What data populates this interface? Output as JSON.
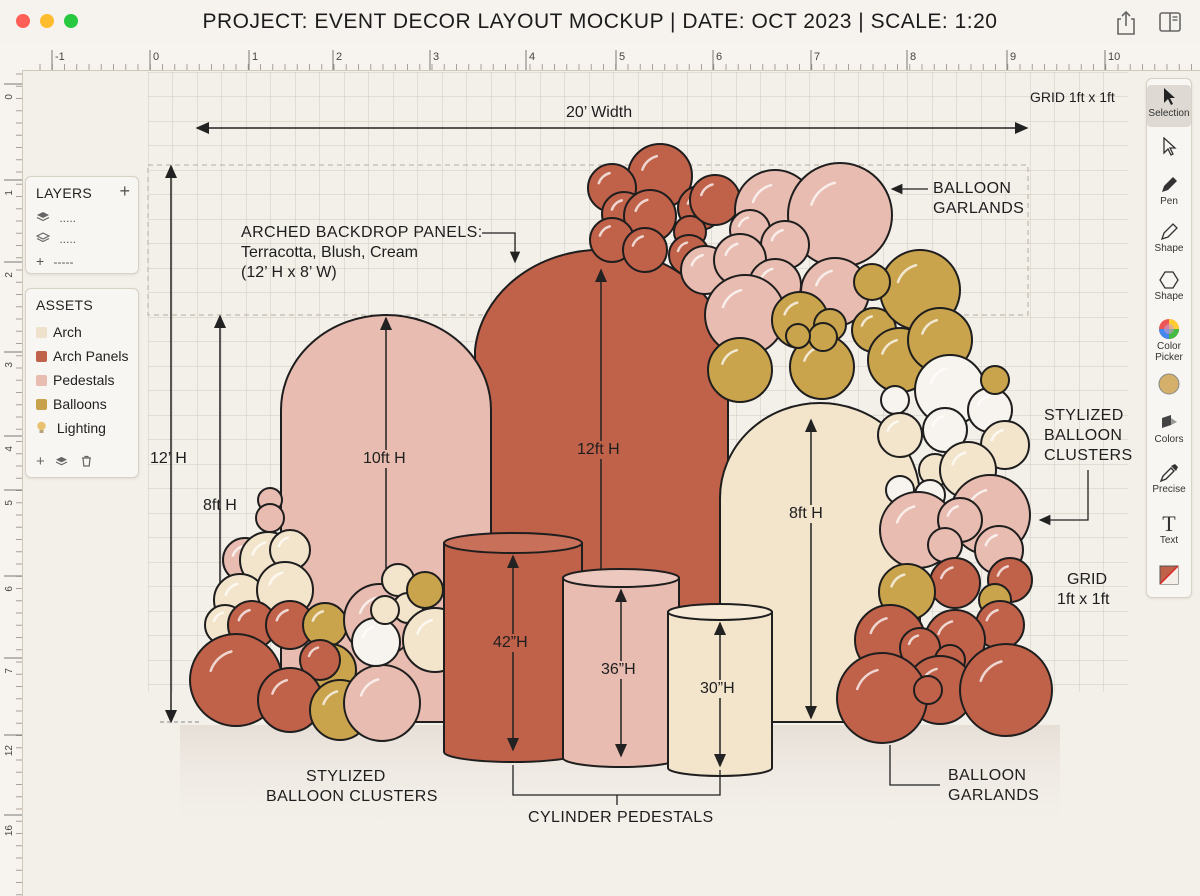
{
  "window": {
    "title": "PROJECT: EVENT DECOR LAYOUT MOCKUP | DATE: OCT 2023 | SCALE: 1:20",
    "traffic_colors": [
      "#ff5f57",
      "#febc2e",
      "#28c840"
    ],
    "share_icon": "share-icon",
    "sidebar_toggle_icon": "sidebar-toggle-icon"
  },
  "rulers": {
    "top_ticks": [
      "-1",
      "0",
      "1",
      "2",
      "3",
      "4",
      "5",
      "6",
      "7",
      "8",
      "9",
      "10"
    ],
    "left_ticks": [
      "0",
      "1",
      "2",
      "3",
      "4",
      "5",
      "6",
      "7",
      "12",
      "16"
    ]
  },
  "layers_panel": {
    "title": "LAYERS",
    "add": "+",
    "rows": [
      {
        "icon": "layers-icon",
        "label": "....."
      },
      {
        "icon": "layers-outline-icon",
        "label": "....."
      },
      {
        "icon": "plus-icon",
        "label": "-----"
      }
    ]
  },
  "assets_panel": {
    "title": "ASSETS",
    "items": [
      {
        "label": "Arch",
        "color": "#efe2cc"
      },
      {
        "label": "Arch Panels",
        "color": "#c0614a"
      },
      {
        "label": "Pedestals",
        "color": "#e8bcb0"
      },
      {
        "label": "Balloons",
        "color": "#c8a24a"
      },
      {
        "label": "Lighting",
        "color": "#e8c270",
        "icon": "bulb-icon"
      }
    ],
    "footer_icons": [
      "add-icon",
      "layers-icon",
      "trash-icon"
    ]
  },
  "toolbar": {
    "tools": [
      {
        "label": "Selection",
        "icon": "cursor-icon"
      },
      {
        "label": "",
        "icon": "direct-select-icon"
      },
      {
        "label": "Pen",
        "icon": "pen-icon"
      },
      {
        "label": "Shape",
        "icon": "pencil-shape-icon"
      },
      {
        "label": "Shape",
        "icon": "hexagon-icon"
      },
      {
        "label": "Color Picker",
        "icon": "color-wheel-icon"
      },
      {
        "label": "",
        "icon": "gold-swatch-icon"
      },
      {
        "label": "Colors",
        "icon": "paint-bucket-icon"
      },
      {
        "label": "Precise",
        "icon": "eyedropper-icon"
      },
      {
        "label": "Text",
        "icon": "text-icon"
      },
      {
        "label": "",
        "icon": "fill-stroke-icon"
      }
    ]
  },
  "canvas": {
    "grid_label_top": "GRID 1ft x 1ft",
    "grid_label_right": [
      "GRID",
      "1ft x 1ft"
    ],
    "width_dim": "20’ Width",
    "height_dim": "12’ H",
    "left_arch_dim": "8ft H",
    "arch_pink_label": "10ft H",
    "arch_terracotta_label": "12ft H",
    "arch_cream_label": "8ft H",
    "ped1_label": "42”H",
    "ped2_label": "36”H",
    "ped3_label": "30”H",
    "backdrop_title": "ARCHED BACKDROP PANELS:",
    "backdrop_colors": "Terracotta, Blush, Cream",
    "backdrop_size": "(12’ H x 8’ W)",
    "garland_top": [
      "BALLOON",
      "GARLANDS"
    ],
    "clusters_right": [
      "STYLIZED",
      "BALLOON",
      "CLUSTERS"
    ],
    "clusters_left": [
      "STYLIZED",
      "BALLOON CLUSTERS"
    ],
    "pedestals_label": "CYLINDER PEDESTALS",
    "garland_bottom": [
      "BALLOON",
      "GARLANDS"
    ],
    "colors": {
      "terracotta": "#c0614a",
      "blush": "#e8bcb0",
      "cream": "#f3e4cc",
      "gold": "#c9a44d",
      "white": "#f7f3ee"
    }
  }
}
